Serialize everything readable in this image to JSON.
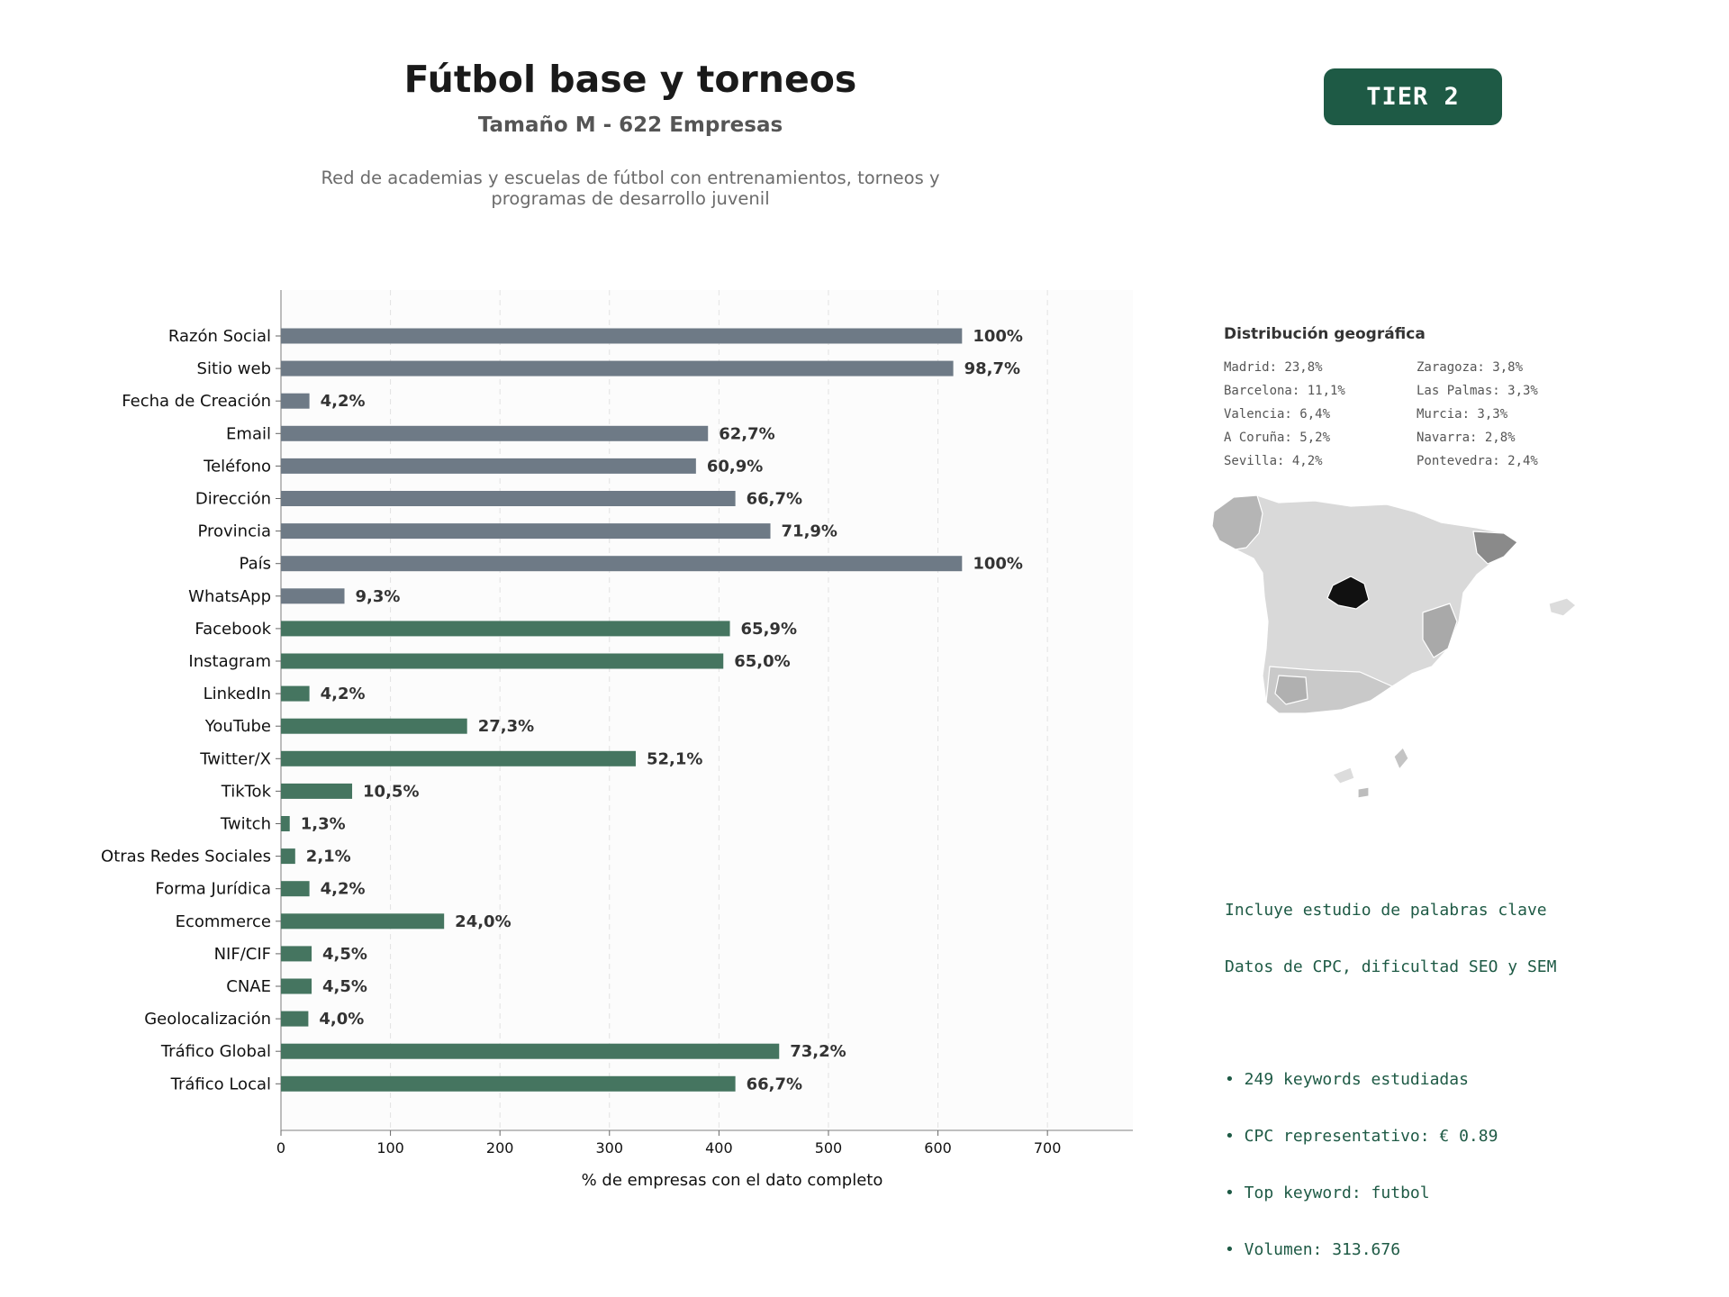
{
  "header": {
    "title": "Fútbol base y torneos",
    "subtitle": "Tamaño M - 622 Empresas",
    "description_line1": "Red de academias y escuelas de fútbol con entrenamientos, torneos y",
    "description_line2": "programas de desarrollo juvenil",
    "tier_label": "TIER 2"
  },
  "colors": {
    "tier_badge": "#1e5a45",
    "bar_gray": "#6e7a86",
    "bar_green": "#457560",
    "keyword_text": "#1e5a45"
  },
  "chart_data": {
    "type": "bar",
    "orientation": "horizontal",
    "xlabel": "% de empresas con el dato completo",
    "xlim": [
      0,
      778
    ],
    "xticks": [
      0,
      100,
      200,
      300,
      400,
      500,
      600,
      700
    ],
    "grid": true,
    "categories": [
      "Razón Social",
      "Sitio web",
      "Fecha de Creación",
      "Email",
      "Teléfono",
      "Dirección",
      "Provincia",
      "País",
      "WhatsApp",
      "Facebook",
      "Instagram",
      "LinkedIn",
      "YouTube",
      "Twitter/X",
      "TikTok",
      "Twitch",
      "Otras Redes Sociales",
      "Forma Jurídica",
      "Ecommerce",
      "NIF/CIF",
      "CNAE",
      "Geolocalización",
      "Tráfico Global",
      "Tráfico Local"
    ],
    "values": [
      622,
      614,
      26,
      390,
      379,
      415,
      447,
      622,
      58,
      410,
      404,
      26,
      170,
      324,
      65,
      8,
      13,
      26,
      149,
      28,
      28,
      25,
      455,
      415
    ],
    "labels": [
      "100%",
      "98,7%",
      "4,2%",
      "62,7%",
      "60,9%",
      "66,7%",
      "71,9%",
      "100%",
      "9,3%",
      "65,9%",
      "65,0%",
      "4,2%",
      "27,3%",
      "52,1%",
      "10,5%",
      "1,3%",
      "2,1%",
      "4,2%",
      "24,0%",
      "4,5%",
      "4,5%",
      "4,0%",
      "73,2%",
      "66,7%"
    ],
    "bar_colors": [
      "gray",
      "gray",
      "gray",
      "gray",
      "gray",
      "gray",
      "gray",
      "gray",
      "gray",
      "green",
      "green",
      "green",
      "green",
      "green",
      "green",
      "green",
      "green",
      "green",
      "green",
      "green",
      "green",
      "green",
      "green",
      "green"
    ]
  },
  "geo": {
    "title": "Distribución geográfica",
    "column1": [
      "Madrid: 23,8%",
      "Barcelona: 11,1%",
      "Valencia: 6,4%",
      "A Coruña: 5,2%",
      "Sevilla: 4,2%"
    ],
    "column2": [
      "Zaragoza: 3,8%",
      "Las Palmas: 3,3%",
      "Murcia: 3,3%",
      "Navarra: 2,8%",
      "Pontevedra: 2,4%"
    ]
  },
  "keywords": {
    "line1": "Incluye estudio de palabras clave",
    "line2": "Datos de CPC, dificultad SEO y SEM",
    "bullets": [
      "• 249 keywords estudiadas",
      "• CPC representativo: € 0.89",
      "• Top keyword: futbol",
      "• Volumen: 313.676"
    ]
  }
}
